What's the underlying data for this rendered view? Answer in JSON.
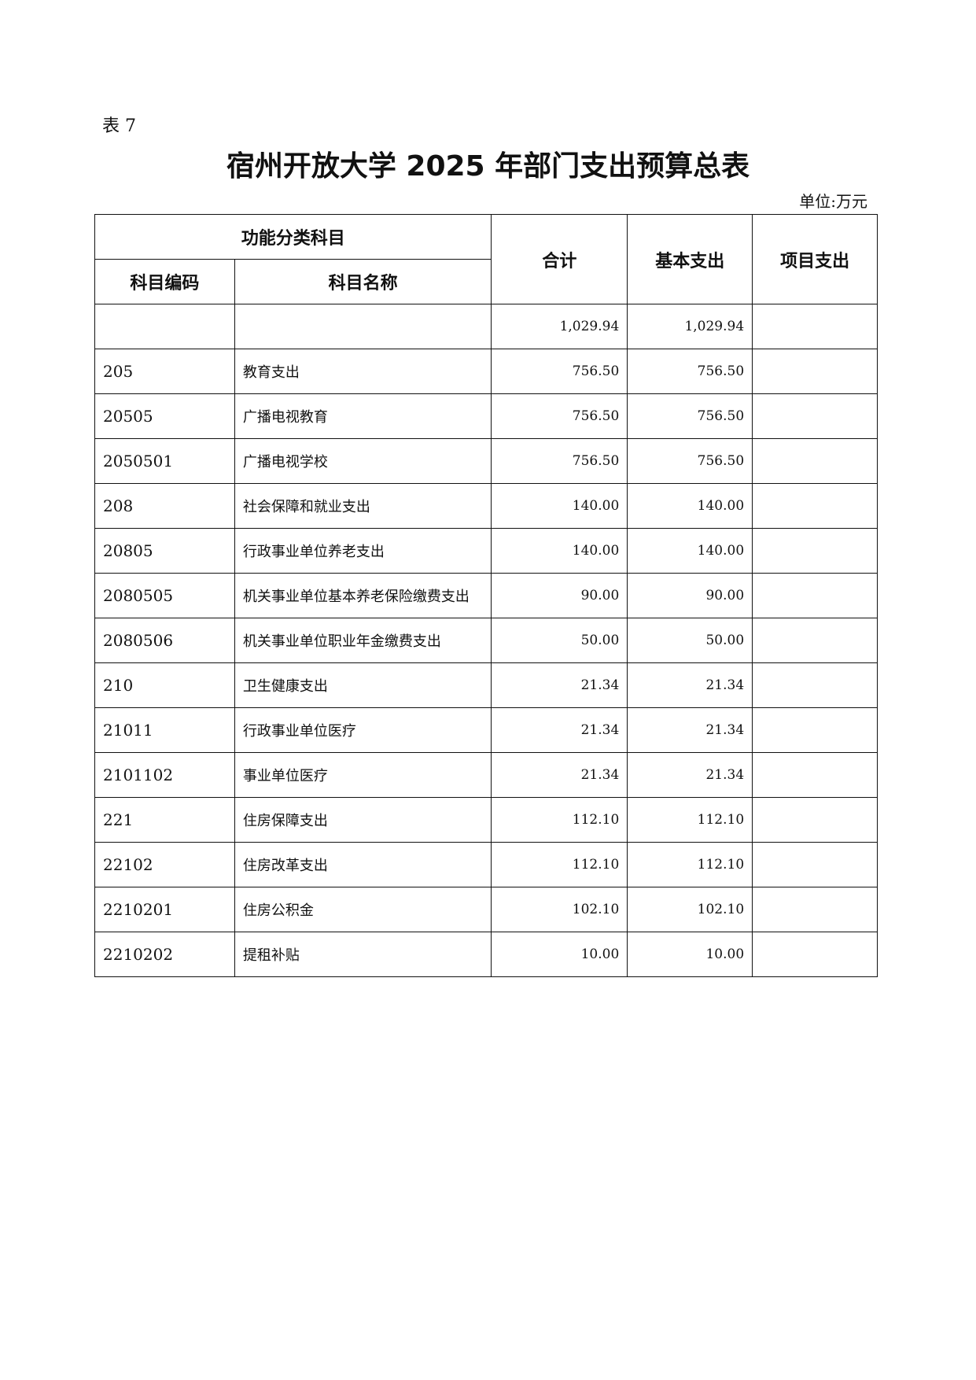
{
  "doc": {
    "label": "表 7",
    "title": "宿州开放大学 2025 年部门支出预算总表",
    "unit": "单位:万元"
  },
  "header": {
    "group": "功能分类科目",
    "code": "科目编码",
    "name": "科目名称",
    "total": "合计",
    "basic": "基本支出",
    "project": "项目支出"
  },
  "rows": [
    {
      "code": "",
      "name": "",
      "total": "1,029.94",
      "basic": "1,029.94",
      "project": ""
    },
    {
      "code": "205",
      "name": "教育支出",
      "total": "756.50",
      "basic": "756.50",
      "project": ""
    },
    {
      "code": "20505",
      "name": "广播电视教育",
      "total": "756.50",
      "basic": "756.50",
      "project": ""
    },
    {
      "code": "2050501",
      "name": "广播电视学校",
      "total": "756.50",
      "basic": "756.50",
      "project": ""
    },
    {
      "code": "208",
      "name": "社会保障和就业支出",
      "total": "140.00",
      "basic": "140.00",
      "project": ""
    },
    {
      "code": "20805",
      "name": "行政事业单位养老支出",
      "total": "140.00",
      "basic": "140.00",
      "project": ""
    },
    {
      "code": "2080505",
      "name": "机关事业单位基本养老保险缴费支出",
      "total": "90.00",
      "basic": "90.00",
      "project": ""
    },
    {
      "code": "2080506",
      "name": "机关事业单位职业年金缴费支出",
      "total": "50.00",
      "basic": "50.00",
      "project": ""
    },
    {
      "code": "210",
      "name": "卫生健康支出",
      "total": "21.34",
      "basic": "21.34",
      "project": ""
    },
    {
      "code": "21011",
      "name": "行政事业单位医疗",
      "total": "21.34",
      "basic": "21.34",
      "project": ""
    },
    {
      "code": "2101102",
      "name": "事业单位医疗",
      "total": "21.34",
      "basic": "21.34",
      "project": ""
    },
    {
      "code": "221",
      "name": "住房保障支出",
      "total": "112.10",
      "basic": "112.10",
      "project": ""
    },
    {
      "code": "22102",
      "name": "住房改革支出",
      "total": "112.10",
      "basic": "112.10",
      "project": ""
    },
    {
      "code": "2210201",
      "name": "住房公积金",
      "total": "102.10",
      "basic": "102.10",
      "project": ""
    },
    {
      "code": "2210202",
      "name": "提租补贴",
      "total": "10.00",
      "basic": "10.00",
      "project": ""
    }
  ]
}
